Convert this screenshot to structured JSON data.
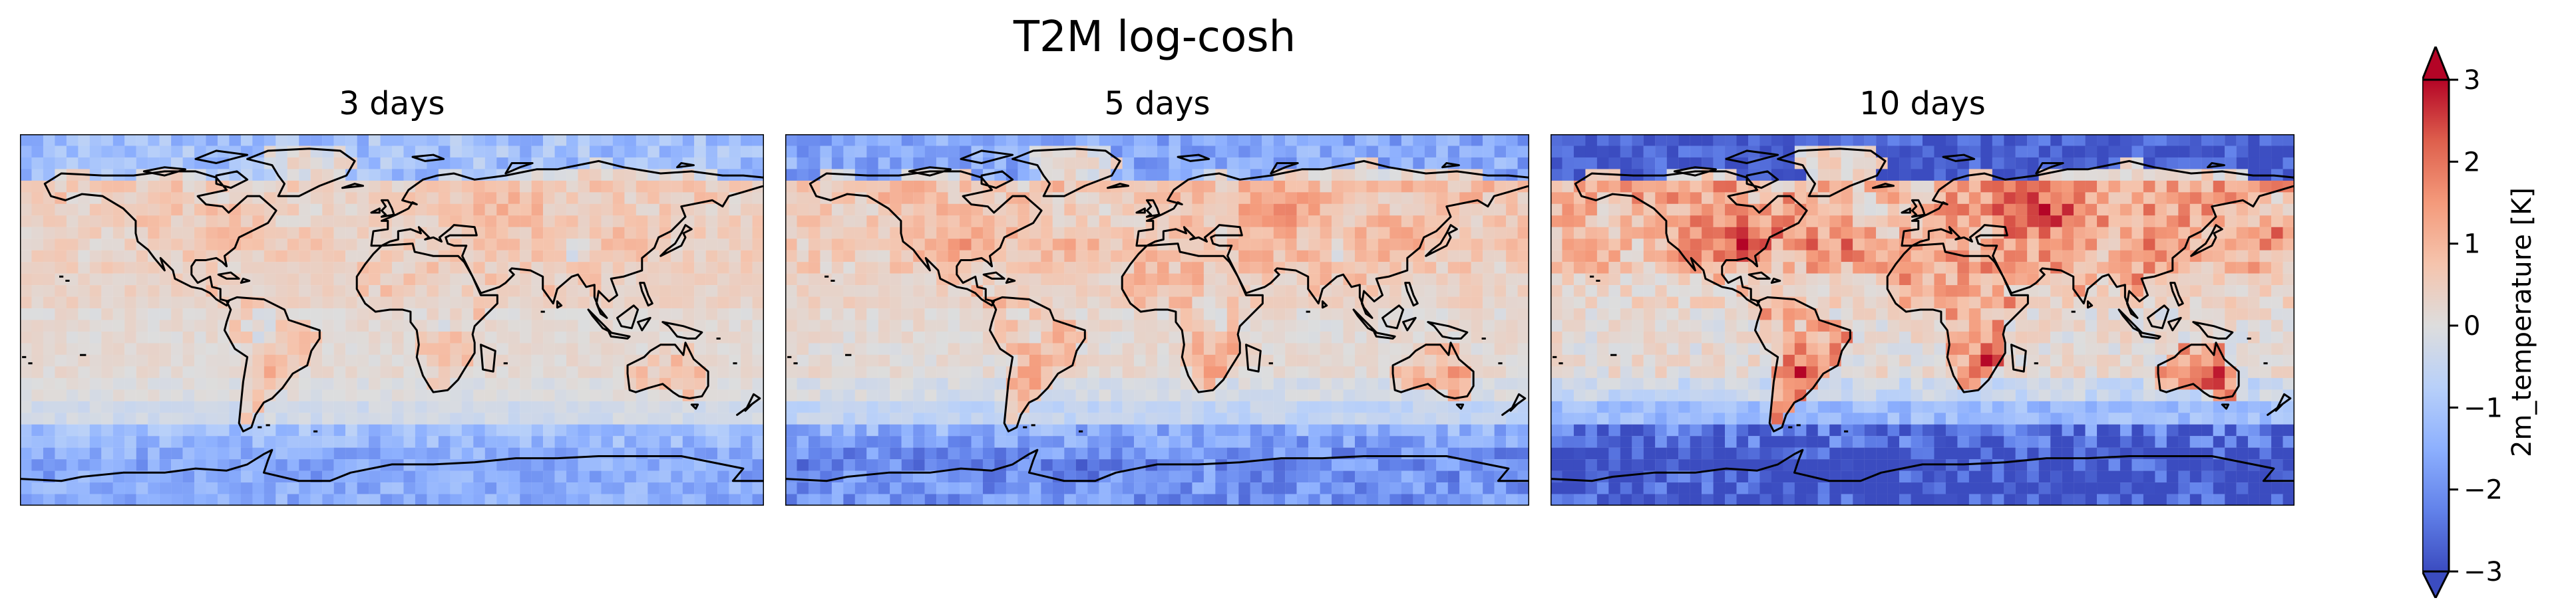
{
  "figure": {
    "title": "T2M log-cosh"
  },
  "chart_data": {
    "type": "heatmap",
    "title": "T2M log-cosh",
    "variable": "2m_temperature",
    "colormap": "coolwarm",
    "colorbar": {
      "label": "2m_temperature [K]",
      "range": [
        -3,
        3
      ],
      "ticks": [
        -3,
        -2,
        -1,
        0,
        1,
        2,
        3
      ],
      "tick_labels": [
        "−3",
        "−2",
        "−1",
        "0",
        "1",
        "2",
        "3"
      ],
      "extend": "both",
      "placement": "right"
    },
    "projection": "plate-carree",
    "extent": {
      "lon": [
        -180,
        180
      ],
      "lat": [
        -90,
        90
      ]
    },
    "grid": "off",
    "panels": [
      {
        "title": "3 days",
        "lead_days": 3
      },
      {
        "title": "5 days",
        "lead_days": 5
      },
      {
        "title": "10 days",
        "lead_days": 10
      }
    ]
  }
}
